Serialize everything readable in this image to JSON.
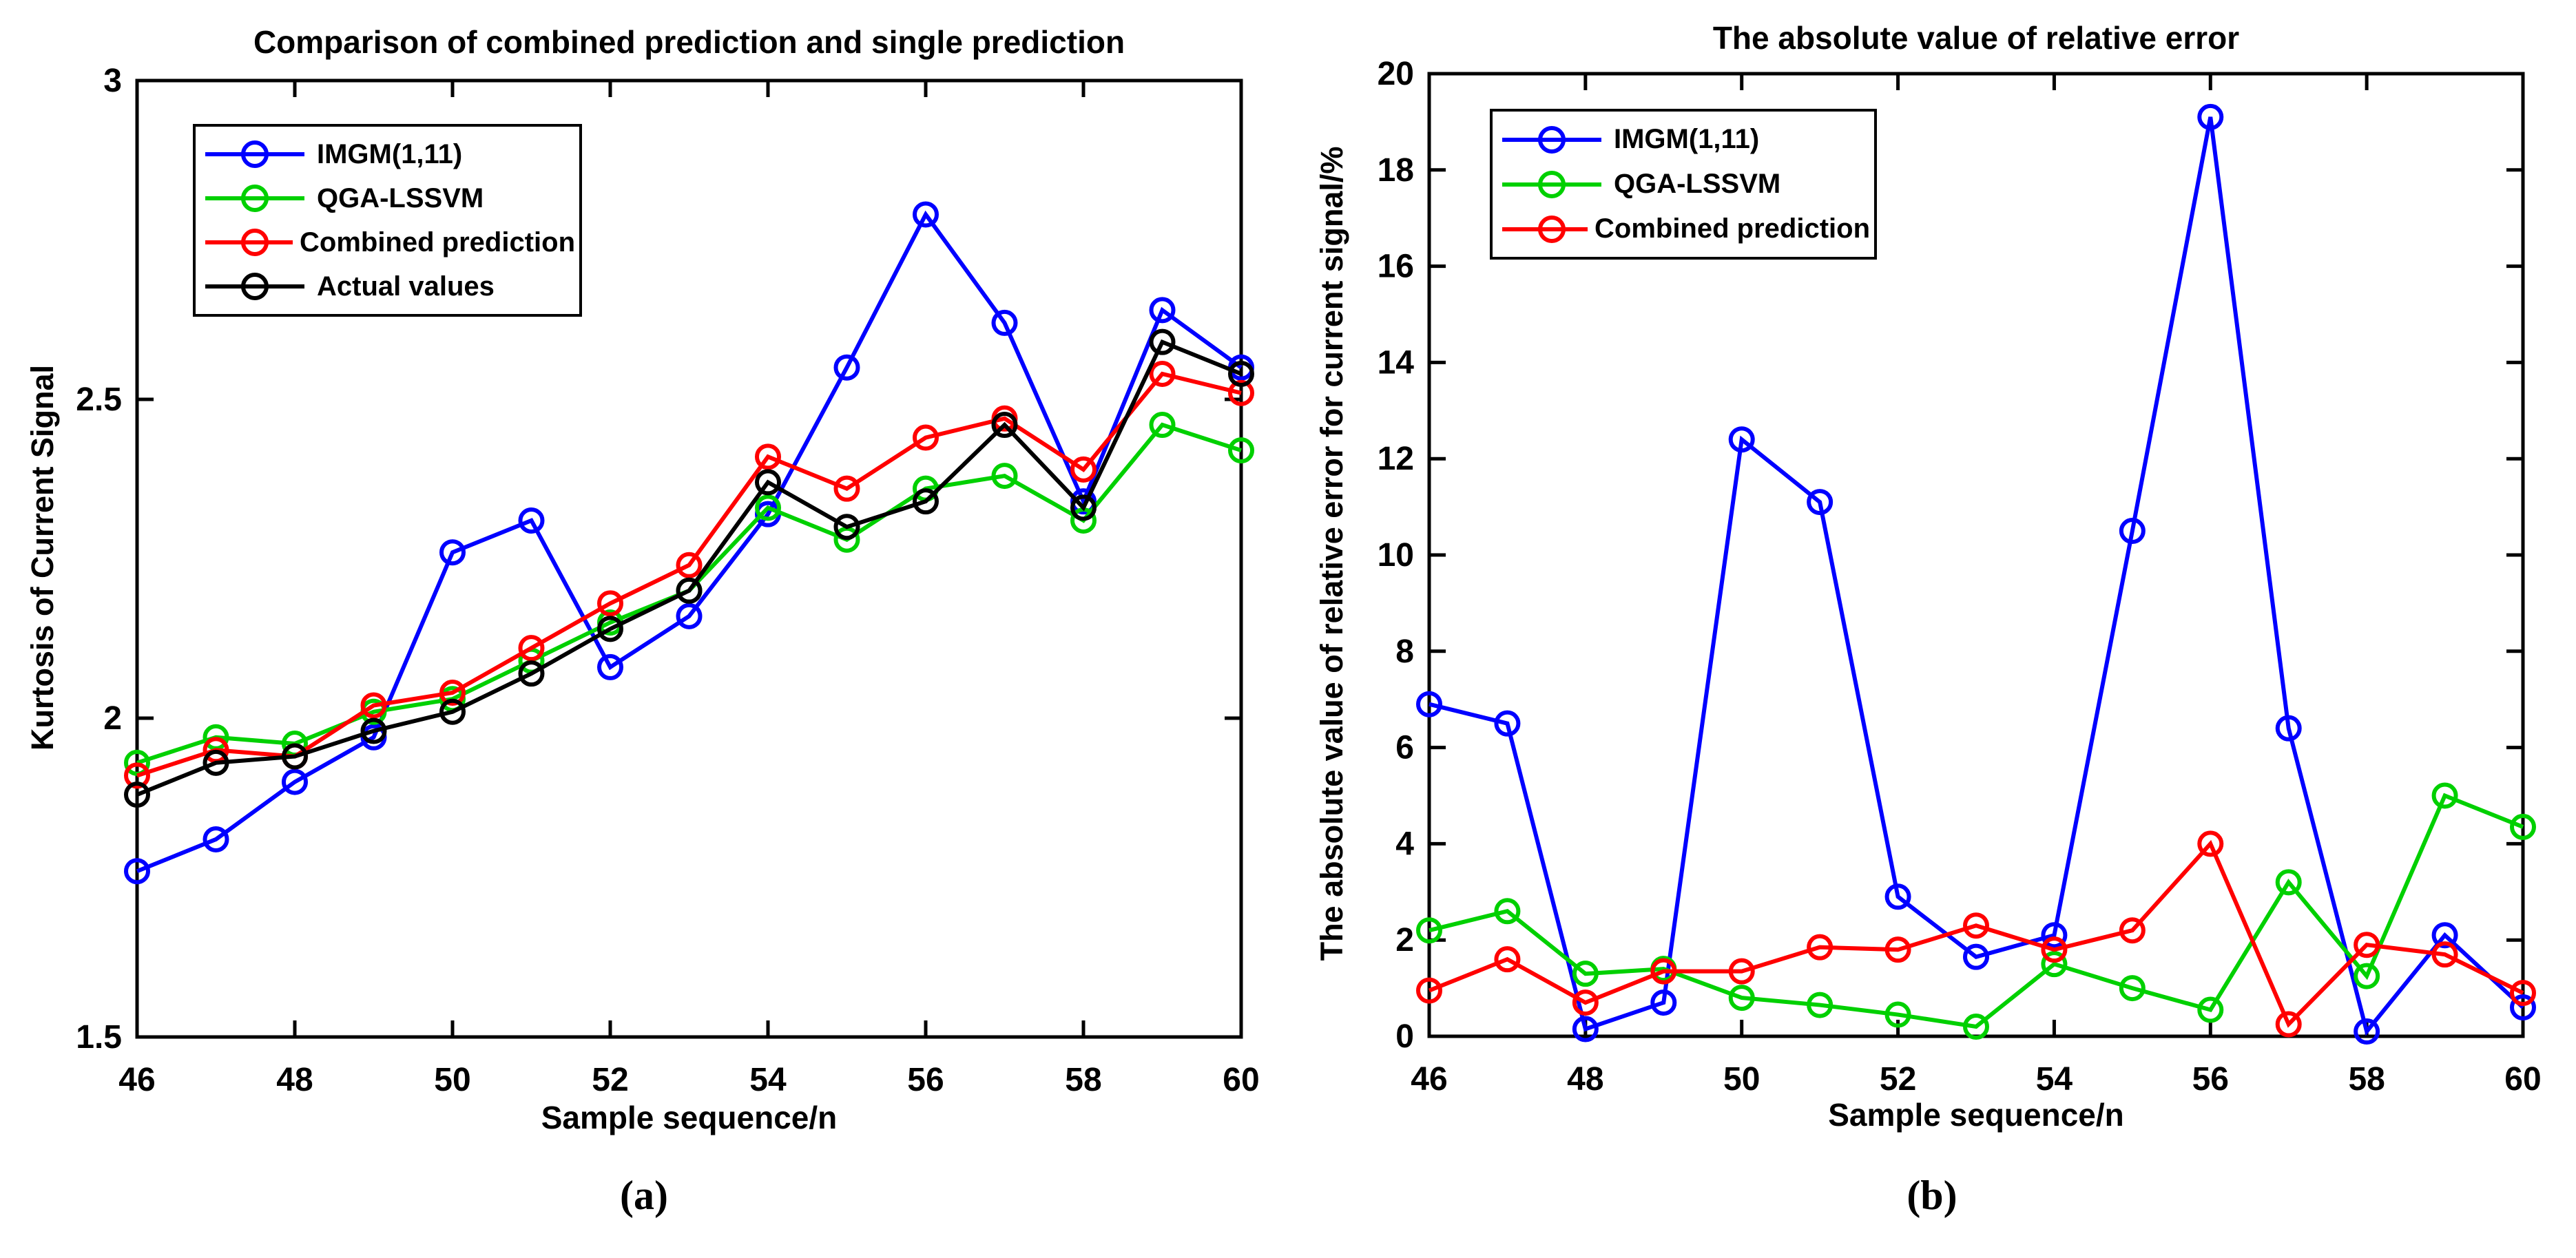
{
  "page": {
    "background": "#ffffff"
  },
  "chart_data": [
    {
      "id": "a",
      "type": "line",
      "title": "Comparison of combined prediction and single prediction",
      "xlabel": "Sample sequence/n",
      "ylabel": "Kurtosis of Current Signal",
      "caption": "(a)",
      "x": [
        46,
        47,
        48,
        49,
        50,
        51,
        52,
        53,
        54,
        55,
        56,
        57,
        58,
        59,
        60
      ],
      "xlim": [
        46,
        60
      ],
      "ylim": [
        1.5,
        3
      ],
      "xticks": [
        46,
        48,
        50,
        52,
        54,
        56,
        58,
        60
      ],
      "yticks": [
        1.5,
        2,
        2.5,
        3
      ],
      "ytick_labels": [
        "1.5",
        "2",
        "2.5",
        "3"
      ],
      "grid": false,
      "legend_position": "top-left",
      "axis_color": "#000000",
      "marker": "circle",
      "series": [
        {
          "name": "IMGM(1,11)",
          "color": "#0000ff",
          "values": [
            1.76,
            1.81,
            1.9,
            1.97,
            2.26,
            2.31,
            2.08,
            2.16,
            2.32,
            2.55,
            2.79,
            2.62,
            2.34,
            2.64,
            2.55
          ]
        },
        {
          "name": "QGA-LSSVM",
          "color": "#00d000",
          "values": [
            1.93,
            1.97,
            1.96,
            2.01,
            2.03,
            2.09,
            2.15,
            2.2,
            2.33,
            2.28,
            2.36,
            2.38,
            2.31,
            2.46,
            2.42
          ]
        },
        {
          "name": "Combined prediction",
          "color": "#ff0000",
          "values": [
            1.91,
            1.95,
            1.94,
            2.02,
            2.04,
            2.11,
            2.18,
            2.24,
            2.41,
            2.36,
            2.44,
            2.47,
            2.39,
            2.54,
            2.51
          ]
        },
        {
          "name": "Actual values",
          "color": "#000000",
          "values": [
            1.88,
            1.93,
            1.94,
            1.98,
            2.01,
            2.07,
            2.14,
            2.2,
            2.37,
            2.3,
            2.34,
            2.46,
            2.33,
            2.59,
            2.54
          ]
        }
      ]
    },
    {
      "id": "b",
      "type": "line",
      "title": "The absolute value of relative error",
      "xlabel": "Sample sequence/n",
      "ylabel": "The absolute value of relative error for current signal/%",
      "caption": "(b)",
      "x": [
        46,
        47,
        48,
        49,
        50,
        51,
        52,
        53,
        54,
        55,
        56,
        57,
        58,
        59,
        60
      ],
      "xlim": [
        46,
        60
      ],
      "ylim": [
        0,
        20
      ],
      "xticks": [
        46,
        48,
        50,
        52,
        54,
        56,
        58,
        60
      ],
      "yticks": [
        0,
        2,
        4,
        6,
        8,
        10,
        12,
        14,
        16,
        18,
        20
      ],
      "ytick_labels": [
        "0",
        "2",
        "4",
        "6",
        "8",
        "10",
        "12",
        "14",
        "16",
        "18",
        "20"
      ],
      "grid": false,
      "legend_position": "top-left",
      "axis_color": "#000000",
      "marker": "circle",
      "series": [
        {
          "name": "IMGM(1,11)",
          "color": "#0000ff",
          "values": [
            6.9,
            6.5,
            0.15,
            0.7,
            12.4,
            11.1,
            2.9,
            1.65,
            2.1,
            10.5,
            19.1,
            6.4,
            0.1,
            2.1,
            0.6
          ]
        },
        {
          "name": "QGA-LSSVM",
          "color": "#00d000",
          "values": [
            2.2,
            2.6,
            1.3,
            1.4,
            0.8,
            0.65,
            0.45,
            0.2,
            1.5,
            1.0,
            0.55,
            3.2,
            1.25,
            5.0,
            4.35
          ]
        },
        {
          "name": "Combined prediction",
          "color": "#ff0000",
          "values": [
            0.95,
            1.6,
            0.7,
            1.35,
            1.35,
            1.85,
            1.8,
            2.3,
            1.8,
            2.2,
            4.0,
            0.25,
            1.9,
            1.7,
            0.9
          ]
        }
      ]
    }
  ]
}
